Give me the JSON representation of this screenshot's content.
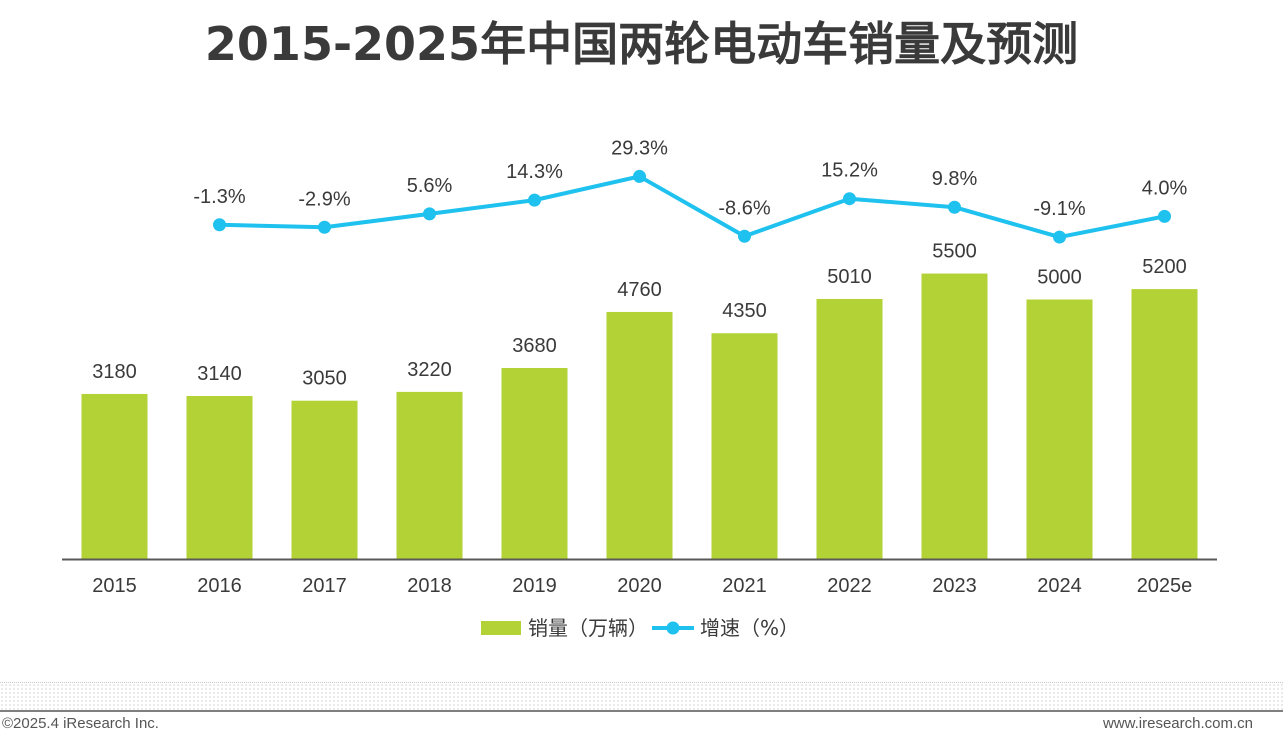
{
  "title": "2015-2025年中国两轮电动车销量及预测",
  "footer": {
    "copyright": "©2025.4 iResearch Inc.",
    "website": "www.iresearch.com.cn"
  },
  "colors": {
    "bar": "#b2d235",
    "line": "#1fc1ee",
    "text": "#3a3a3a",
    "axis": "#595959"
  },
  "chart_data": {
    "type": "bar+line",
    "categories": [
      "2015",
      "2016",
      "2017",
      "2018",
      "2019",
      "2020",
      "2021",
      "2022",
      "2023",
      "2024",
      "2025e"
    ],
    "series": [
      {
        "name": "销量（万辆）",
        "type": "bar",
        "values": [
          3180,
          3140,
          3050,
          3220,
          3680,
          4760,
          4350,
          5010,
          5500,
          5000,
          5200
        ],
        "labels": [
          "3180",
          "3140",
          "3050",
          "3220",
          "3680",
          "4760",
          "4350",
          "5010",
          "5500",
          "5000",
          "5200"
        ]
      },
      {
        "name": "增速（%）",
        "type": "line",
        "values": [
          null,
          -1.3,
          -2.9,
          5.6,
          14.3,
          29.3,
          -8.6,
          15.2,
          9.8,
          -9.1,
          4.0
        ],
        "labels": [
          "",
          "-1.3%",
          "-2.9%",
          "5.6%",
          "14.3%",
          "29.3%",
          "-8.6%",
          "15.2%",
          "9.8%",
          "-9.1%",
          "4.0%"
        ]
      }
    ],
    "legend_position": "bottom-center",
    "grid": false
  }
}
